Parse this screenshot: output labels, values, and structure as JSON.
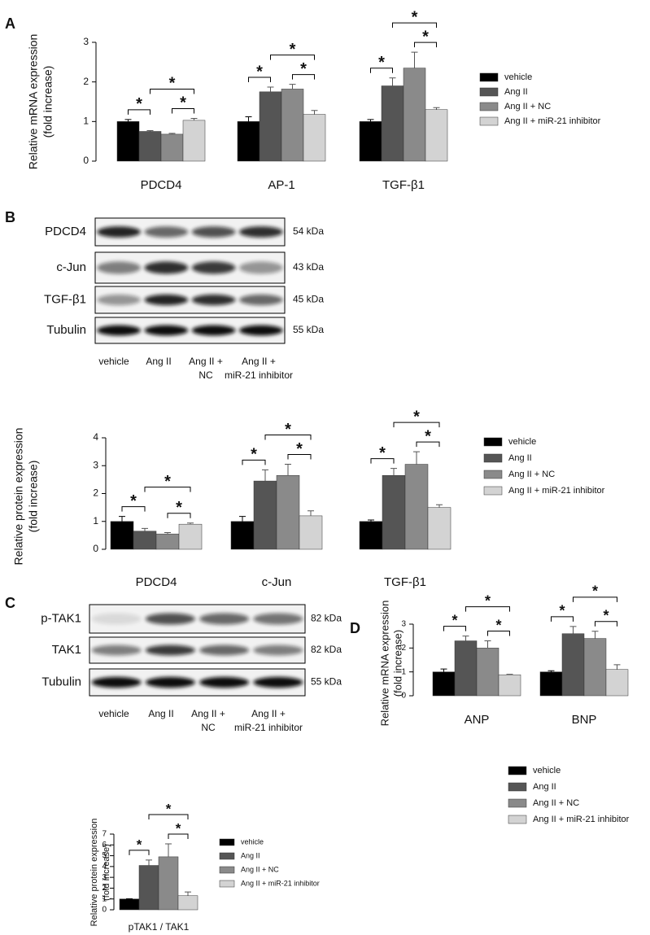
{
  "panel_labels": [
    "A",
    "B",
    "C",
    "D"
  ],
  "blots": [
    {
      "rows": [
        {
          "label": "PDCD4",
          "size": "54 kDa"
        },
        {
          "label": "c-Jun",
          "size": "43 kDa"
        },
        {
          "label": "TGF-β1",
          "size": "45 kDa"
        },
        {
          "label": "Tubulin",
          "size": "55 kDa"
        }
      ],
      "lanes": [
        [
          "vehicle"
        ],
        [
          "Ang II"
        ],
        [
          "Ang II +",
          "NC"
        ],
        [
          "Ang II +",
          "miR-21 inhibitor"
        ]
      ]
    },
    {
      "rows": [
        {
          "label": "p-TAK1",
          "size": "82 kDa"
        },
        {
          "label": "TAK1",
          "size": "82 kDa"
        },
        {
          "label": "Tubulin",
          "size": "55 kDa"
        }
      ],
      "lanes": [
        [
          "vehicle"
        ],
        [
          "Ang II"
        ],
        [
          "Ang II +",
          "NC"
        ],
        [
          "Ang II +",
          "miR-21 inhibitor"
        ]
      ]
    }
  ],
  "chart_data": [
    {
      "type": "bar",
      "y_label": [
        "Relative mRNA expression",
        "(fold increase)"
      ],
      "categories": [
        "PDCD4",
        "AP-1",
        "TGF-β1"
      ],
      "series": [
        {
          "name": "vehicle",
          "color": "#000000",
          "values": [
            1.0,
            1.0,
            1.0
          ],
          "errors": [
            0.05,
            0.12,
            0.05
          ]
        },
        {
          "name": "Ang II",
          "color": "#555555",
          "values": [
            0.75,
            1.75,
            1.9
          ],
          "errors": [
            0.02,
            0.12,
            0.2
          ]
        },
        {
          "name": "Ang II + NC",
          "color": "#8a8a8a",
          "values": [
            0.68,
            1.82,
            2.35
          ],
          "errors": [
            0.02,
            0.12,
            0.4
          ]
        },
        {
          "name": "Ang II + miR-21 inhibitor",
          "color": "#d3d3d3",
          "values": [
            1.03,
            1.18,
            1.3
          ],
          "errors": [
            0.05,
            0.1,
            0.05
          ]
        }
      ],
      "ylim": [
        0,
        3
      ],
      "yticks": [
        0,
        1,
        2,
        3
      ],
      "legend": "right",
      "significance": [
        {
          "category": "PDCD4",
          "between": [
            "vehicle",
            "Ang II"
          ],
          "label": "*"
        },
        {
          "category": "PDCD4",
          "between": [
            "Ang II + NC",
            "Ang II + miR-21 inhibitor"
          ],
          "label": "*"
        },
        {
          "category": "PDCD4",
          "between": [
            "Ang II",
            "Ang II + miR-21 inhibitor"
          ],
          "label": "*"
        },
        {
          "category": "AP-1",
          "between": [
            "vehicle",
            "Ang II"
          ],
          "label": "*"
        },
        {
          "category": "AP-1",
          "between": [
            "Ang II + NC",
            "Ang II + miR-21 inhibitor"
          ],
          "label": "*"
        },
        {
          "category": "AP-1",
          "between": [
            "Ang II",
            "Ang II + miR-21 inhibitor"
          ],
          "label": "*"
        },
        {
          "category": "TGF-β1",
          "between": [
            "vehicle",
            "Ang II"
          ],
          "label": "*"
        },
        {
          "category": "TGF-β1",
          "between": [
            "Ang II + NC",
            "Ang II + miR-21 inhibitor"
          ],
          "label": "*"
        },
        {
          "category": "TGF-β1",
          "between": [
            "Ang II",
            "Ang II + miR-21 inhibitor"
          ],
          "label": "*"
        }
      ]
    },
    {
      "type": "bar",
      "y_label": [
        "Relative protein expression",
        "(fold increase)"
      ],
      "categories": [
        "PDCD4",
        "c-Jun",
        "TGF-β1"
      ],
      "series": [
        {
          "name": "vehicle",
          "color": "#000000",
          "values": [
            1.0,
            1.0,
            1.0
          ],
          "errors": [
            0.18,
            0.18,
            0.05
          ]
        },
        {
          "name": "Ang II",
          "color": "#555555",
          "values": [
            0.65,
            2.45,
            2.65
          ],
          "errors": [
            0.1,
            0.4,
            0.25
          ]
        },
        {
          "name": "Ang II + NC",
          "color": "#8a8a8a",
          "values": [
            0.55,
            2.65,
            3.05
          ],
          "errors": [
            0.05,
            0.4,
            0.45
          ]
        },
        {
          "name": "Ang II + miR-21 inhibitor",
          "color": "#d3d3d3",
          "values": [
            0.9,
            1.2,
            1.5
          ],
          "errors": [
            0.04,
            0.18,
            0.1
          ]
        }
      ],
      "ylim": [
        0,
        4
      ],
      "yticks": [
        0,
        1,
        2,
        3,
        4
      ],
      "legend": "right",
      "significance": [
        {
          "category": "PDCD4",
          "between": [
            "vehicle",
            "Ang II"
          ],
          "label": "*"
        },
        {
          "category": "PDCD4",
          "between": [
            "Ang II + NC",
            "Ang II + miR-21 inhibitor"
          ],
          "label": "*"
        },
        {
          "category": "PDCD4",
          "between": [
            "Ang II",
            "Ang II + miR-21 inhibitor"
          ],
          "label": "*"
        },
        {
          "category": "c-Jun",
          "between": [
            "vehicle",
            "Ang II"
          ],
          "label": "*"
        },
        {
          "category": "c-Jun",
          "between": [
            "Ang II + NC",
            "Ang II + miR-21 inhibitor"
          ],
          "label": "*"
        },
        {
          "category": "c-Jun",
          "between": [
            "Ang II",
            "Ang II + miR-21 inhibitor"
          ],
          "label": "*"
        },
        {
          "category": "TGF-β1",
          "between": [
            "vehicle",
            "Ang II"
          ],
          "label": "*"
        },
        {
          "category": "TGF-β1",
          "between": [
            "Ang II + NC",
            "Ang II + miR-21 inhibitor"
          ],
          "label": "*"
        },
        {
          "category": "TGF-β1",
          "between": [
            "Ang II",
            "Ang II + miR-21 inhibitor"
          ],
          "label": "*"
        }
      ]
    },
    {
      "type": "bar",
      "y_label": [
        "Relative protein expression",
        "(fold increase)"
      ],
      "categories": [
        "pTAK1 / TAK1"
      ],
      "series": [
        {
          "name": "vehicle",
          "color": "#000000",
          "values": [
            1.0
          ],
          "errors": [
            0.02
          ]
        },
        {
          "name": "Ang II",
          "color": "#555555",
          "values": [
            4.1
          ],
          "errors": [
            0.5
          ]
        },
        {
          "name": "Ang II + NC",
          "color": "#8a8a8a",
          "values": [
            4.9
          ],
          "errors": [
            1.2
          ]
        },
        {
          "name": "Ang II + miR-21 inhibitor",
          "color": "#d3d3d3",
          "values": [
            1.3
          ],
          "errors": [
            0.35
          ]
        }
      ],
      "ylim": [
        0,
        7
      ],
      "yticks": [
        0,
        1,
        2,
        3,
        4,
        5,
        6,
        7
      ],
      "legend": "right",
      "significance": [
        {
          "category": "pTAK1 / TAK1",
          "between": [
            "vehicle",
            "Ang II"
          ],
          "label": "*"
        },
        {
          "category": "pTAK1 / TAK1",
          "between": [
            "Ang II + NC",
            "Ang II + miR-21 inhibitor"
          ],
          "label": "*"
        },
        {
          "category": "pTAK1 / TAK1",
          "between": [
            "Ang II",
            "Ang II + miR-21 inhibitor"
          ],
          "label": "*"
        }
      ]
    },
    {
      "type": "bar",
      "y_label": [
        "Relative mRNA expression",
        "(fold increase)"
      ],
      "categories": [
        "ANP",
        "BNP"
      ],
      "series": [
        {
          "name": "vehicle",
          "color": "#000000",
          "values": [
            1.0,
            1.0
          ],
          "errors": [
            0.12,
            0.05
          ]
        },
        {
          "name": "Ang II",
          "color": "#555555",
          "values": [
            2.3,
            2.6
          ],
          "errors": [
            0.2,
            0.3
          ]
        },
        {
          "name": "Ang II + NC",
          "color": "#8a8a8a",
          "values": [
            2.0,
            2.4
          ],
          "errors": [
            0.3,
            0.3
          ]
        },
        {
          "name": "Ang II + miR-21 inhibitor",
          "color": "#d3d3d3",
          "values": [
            0.88,
            1.1
          ],
          "errors": [
            0.02,
            0.2
          ]
        }
      ],
      "ylim": [
        0,
        3
      ],
      "yticks": [
        0,
        1,
        2,
        3
      ],
      "legend": "below",
      "significance": [
        {
          "category": "ANP",
          "between": [
            "vehicle",
            "Ang II"
          ],
          "label": "*"
        },
        {
          "category": "ANP",
          "between": [
            "Ang II + NC",
            "Ang II + miR-21 inhibitor"
          ],
          "label": "*"
        },
        {
          "category": "ANP",
          "between": [
            "Ang II",
            "Ang II + miR-21 inhibitor"
          ],
          "label": "*"
        },
        {
          "category": "BNP",
          "between": [
            "vehicle",
            "Ang II"
          ],
          "label": "*"
        },
        {
          "category": "BNP",
          "between": [
            "Ang II + NC",
            "Ang II + miR-21 inhibitor"
          ],
          "label": "*"
        },
        {
          "category": "BNP",
          "between": [
            "Ang II",
            "Ang II + miR-21 inhibitor"
          ],
          "label": "*"
        }
      ]
    }
  ]
}
